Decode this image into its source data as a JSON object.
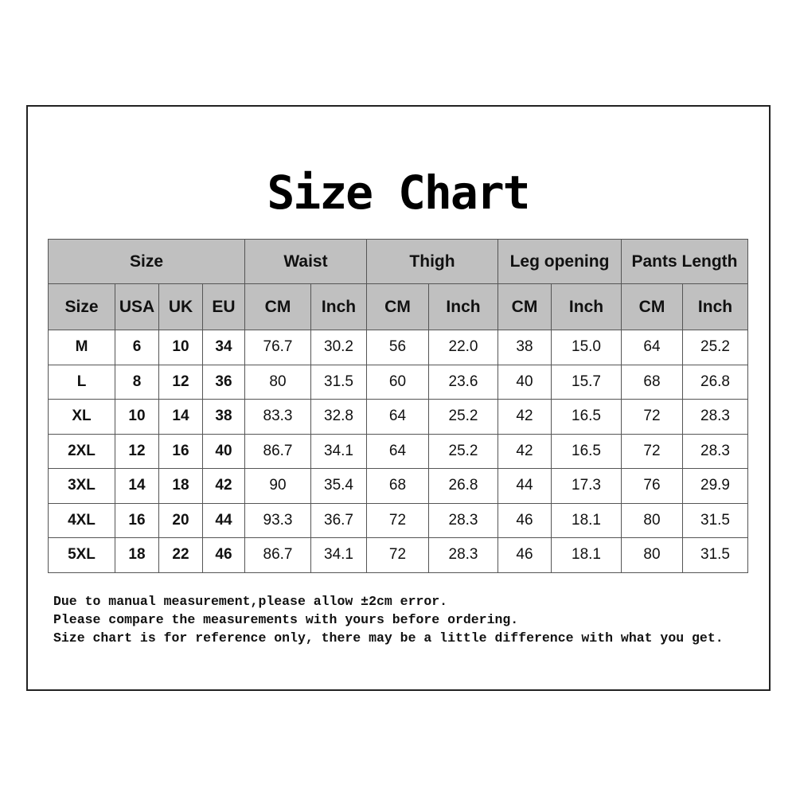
{
  "title": "Size Chart",
  "groups": [
    "Size",
    "Waist",
    "Thigh",
    "Leg opening",
    "Pants Length"
  ],
  "subheaders": [
    "Size",
    "USA",
    "UK",
    "EU",
    "CM",
    "Inch",
    "CM",
    "Inch",
    "CM",
    "Inch",
    "CM",
    "Inch"
  ],
  "rows": [
    [
      "M",
      "6",
      "10",
      "34",
      "76.7",
      "30.2",
      "56",
      "22.0",
      "38",
      "15.0",
      "64",
      "25.2"
    ],
    [
      "L",
      "8",
      "12",
      "36",
      "80",
      "31.5",
      "60",
      "23.6",
      "40",
      "15.7",
      "68",
      "26.8"
    ],
    [
      "XL",
      "10",
      "14",
      "38",
      "83.3",
      "32.8",
      "64",
      "25.2",
      "42",
      "16.5",
      "72",
      "28.3"
    ],
    [
      "2XL",
      "12",
      "16",
      "40",
      "86.7",
      "34.1",
      "64",
      "25.2",
      "42",
      "16.5",
      "72",
      "28.3"
    ],
    [
      "3XL",
      "14",
      "18",
      "42",
      "90",
      "35.4",
      "68",
      "26.8",
      "44",
      "17.3",
      "76",
      "29.9"
    ],
    [
      "4XL",
      "16",
      "20",
      "44",
      "93.3",
      "36.7",
      "72",
      "28.3",
      "46",
      "18.1",
      "80",
      "31.5"
    ],
    [
      "5XL",
      "18",
      "22",
      "46",
      "86.7",
      "34.1",
      "72",
      "28.3",
      "46",
      "18.1",
      "80",
      "31.5"
    ]
  ],
  "notes": [
    "Due to manual measurement,please allow ±2cm error.",
    "Please compare the measurements with yours before ordering.",
    "Size chart is for reference only, there may be a little difference with what you get."
  ],
  "colors": {
    "header_bg": "#c0c0c0",
    "border": "#555555"
  }
}
